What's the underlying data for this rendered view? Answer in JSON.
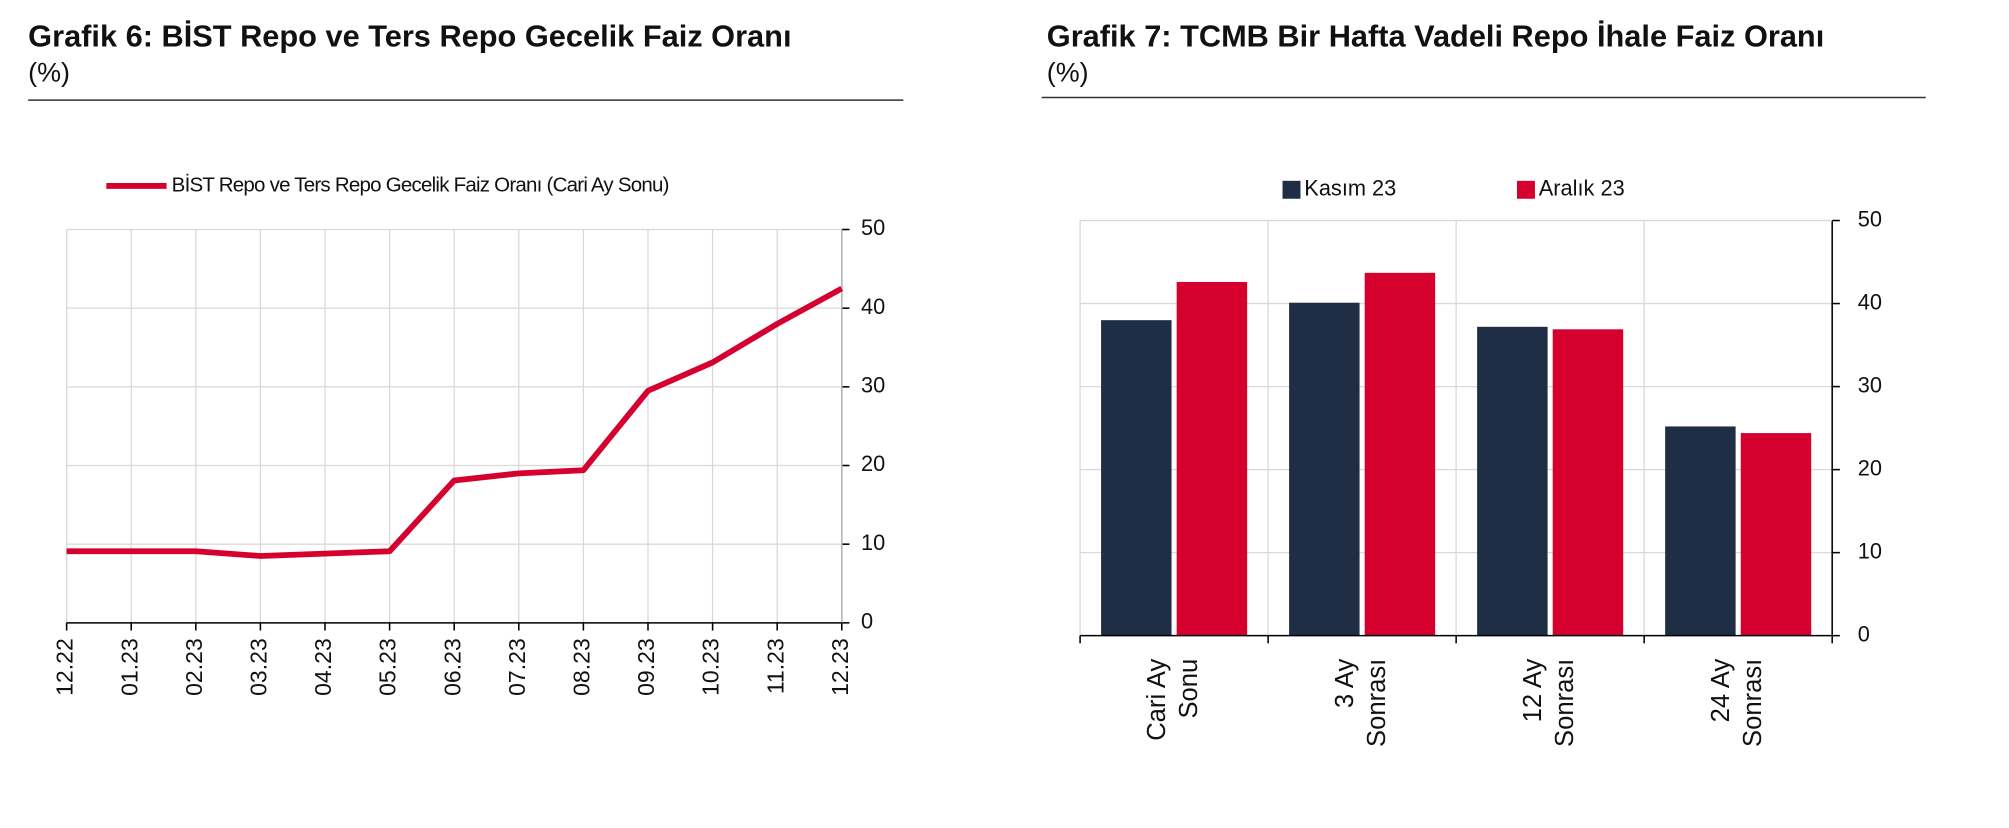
{
  "chart_data": [
    {
      "type": "line",
      "title": "Grafik 6:  BİST Repo ve Ters Repo Gecelik Faiz Oranı",
      "subtitle": "(%)",
      "categories": [
        "12.22",
        "01.23",
        "02.23",
        "03.23",
        "04.23",
        "05.23",
        "06.23",
        "07.23",
        "08.23",
        "09.23",
        "10.23",
        "11.23",
        "12.23"
      ],
      "series": [
        {
          "name": "BİST Repo ve Ters Repo Gecelik Faiz Oranı (Cari Ay Sonu)",
          "color": "#d6002f",
          "values": [
            9.1,
            9.1,
            9.1,
            8.5,
            8.8,
            9.1,
            18.1,
            19.0,
            19.4,
            29.5,
            33.1,
            38.0,
            42.5
          ]
        }
      ],
      "ylim": [
        0,
        50
      ],
      "yticks": [
        0,
        10,
        20,
        30,
        40,
        50
      ],
      "grid": true
    },
    {
      "type": "bar",
      "title": "Grafik 7: TCMB Bir Hafta Vadeli Repo İhale Faiz Oranı",
      "subtitle": "(%)",
      "categories": [
        [
          "Cari Ay",
          "Sonu"
        ],
        [
          "3 Ay",
          "Sonrası"
        ],
        [
          "12 Ay",
          "Sonrası"
        ],
        [
          "24 Ay",
          "Sonrası"
        ]
      ],
      "series": [
        {
          "name": "Kasım 23",
          "color": "#1f2e44",
          "values": [
            38.0,
            40.1,
            37.2,
            25.2
          ]
        },
        {
          "name": "Aralık 23",
          "color": "#d6002f",
          "values": [
            42.6,
            43.7,
            36.9,
            24.4
          ]
        }
      ],
      "ylim": [
        0,
        50
      ],
      "yticks": [
        0,
        10,
        20,
        30,
        40,
        50
      ],
      "grid": true
    }
  ]
}
